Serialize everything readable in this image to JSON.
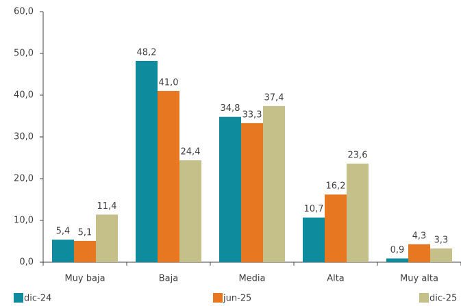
{
  "chart_data": {
    "type": "bar",
    "categories": [
      "Muy baja",
      "Baja",
      "Media",
      "Alta",
      "Muy alta"
    ],
    "series": [
      {
        "name": "dic-24",
        "color": "#0e8c9e",
        "values": [
          5.4,
          48.2,
          34.8,
          10.7,
          0.9
        ],
        "value_labels": [
          "5,4",
          "48,2",
          "34,8",
          "10,7",
          "0,9"
        ]
      },
      {
        "name": "jun-25",
        "color": "#e87722",
        "values": [
          5.1,
          41.0,
          33.3,
          16.2,
          4.3
        ],
        "value_labels": [
          "5,1",
          "41,0",
          "33,3",
          "16,2",
          "4,3"
        ]
      },
      {
        "name": "dic-25",
        "color": "#c5c08a",
        "values": [
          11.4,
          24.4,
          37.4,
          23.6,
          3.3
        ],
        "value_labels": [
          "11,4",
          "24,4",
          "37,4",
          "23,6",
          "3,3"
        ]
      }
    ],
    "ylim": [
      0,
      60
    ],
    "yticks": [
      {
        "value": 0,
        "label": "0,0"
      },
      {
        "value": 10,
        "label": "10,0"
      },
      {
        "value": 20,
        "label": "20,0"
      },
      {
        "value": 30,
        "label": "30,0"
      },
      {
        "value": 40,
        "label": "40,0"
      },
      {
        "value": 50,
        "label": "50,0"
      },
      {
        "value": 60,
        "label": "60,0"
      }
    ],
    "grid": false,
    "legend": "bottom"
  }
}
